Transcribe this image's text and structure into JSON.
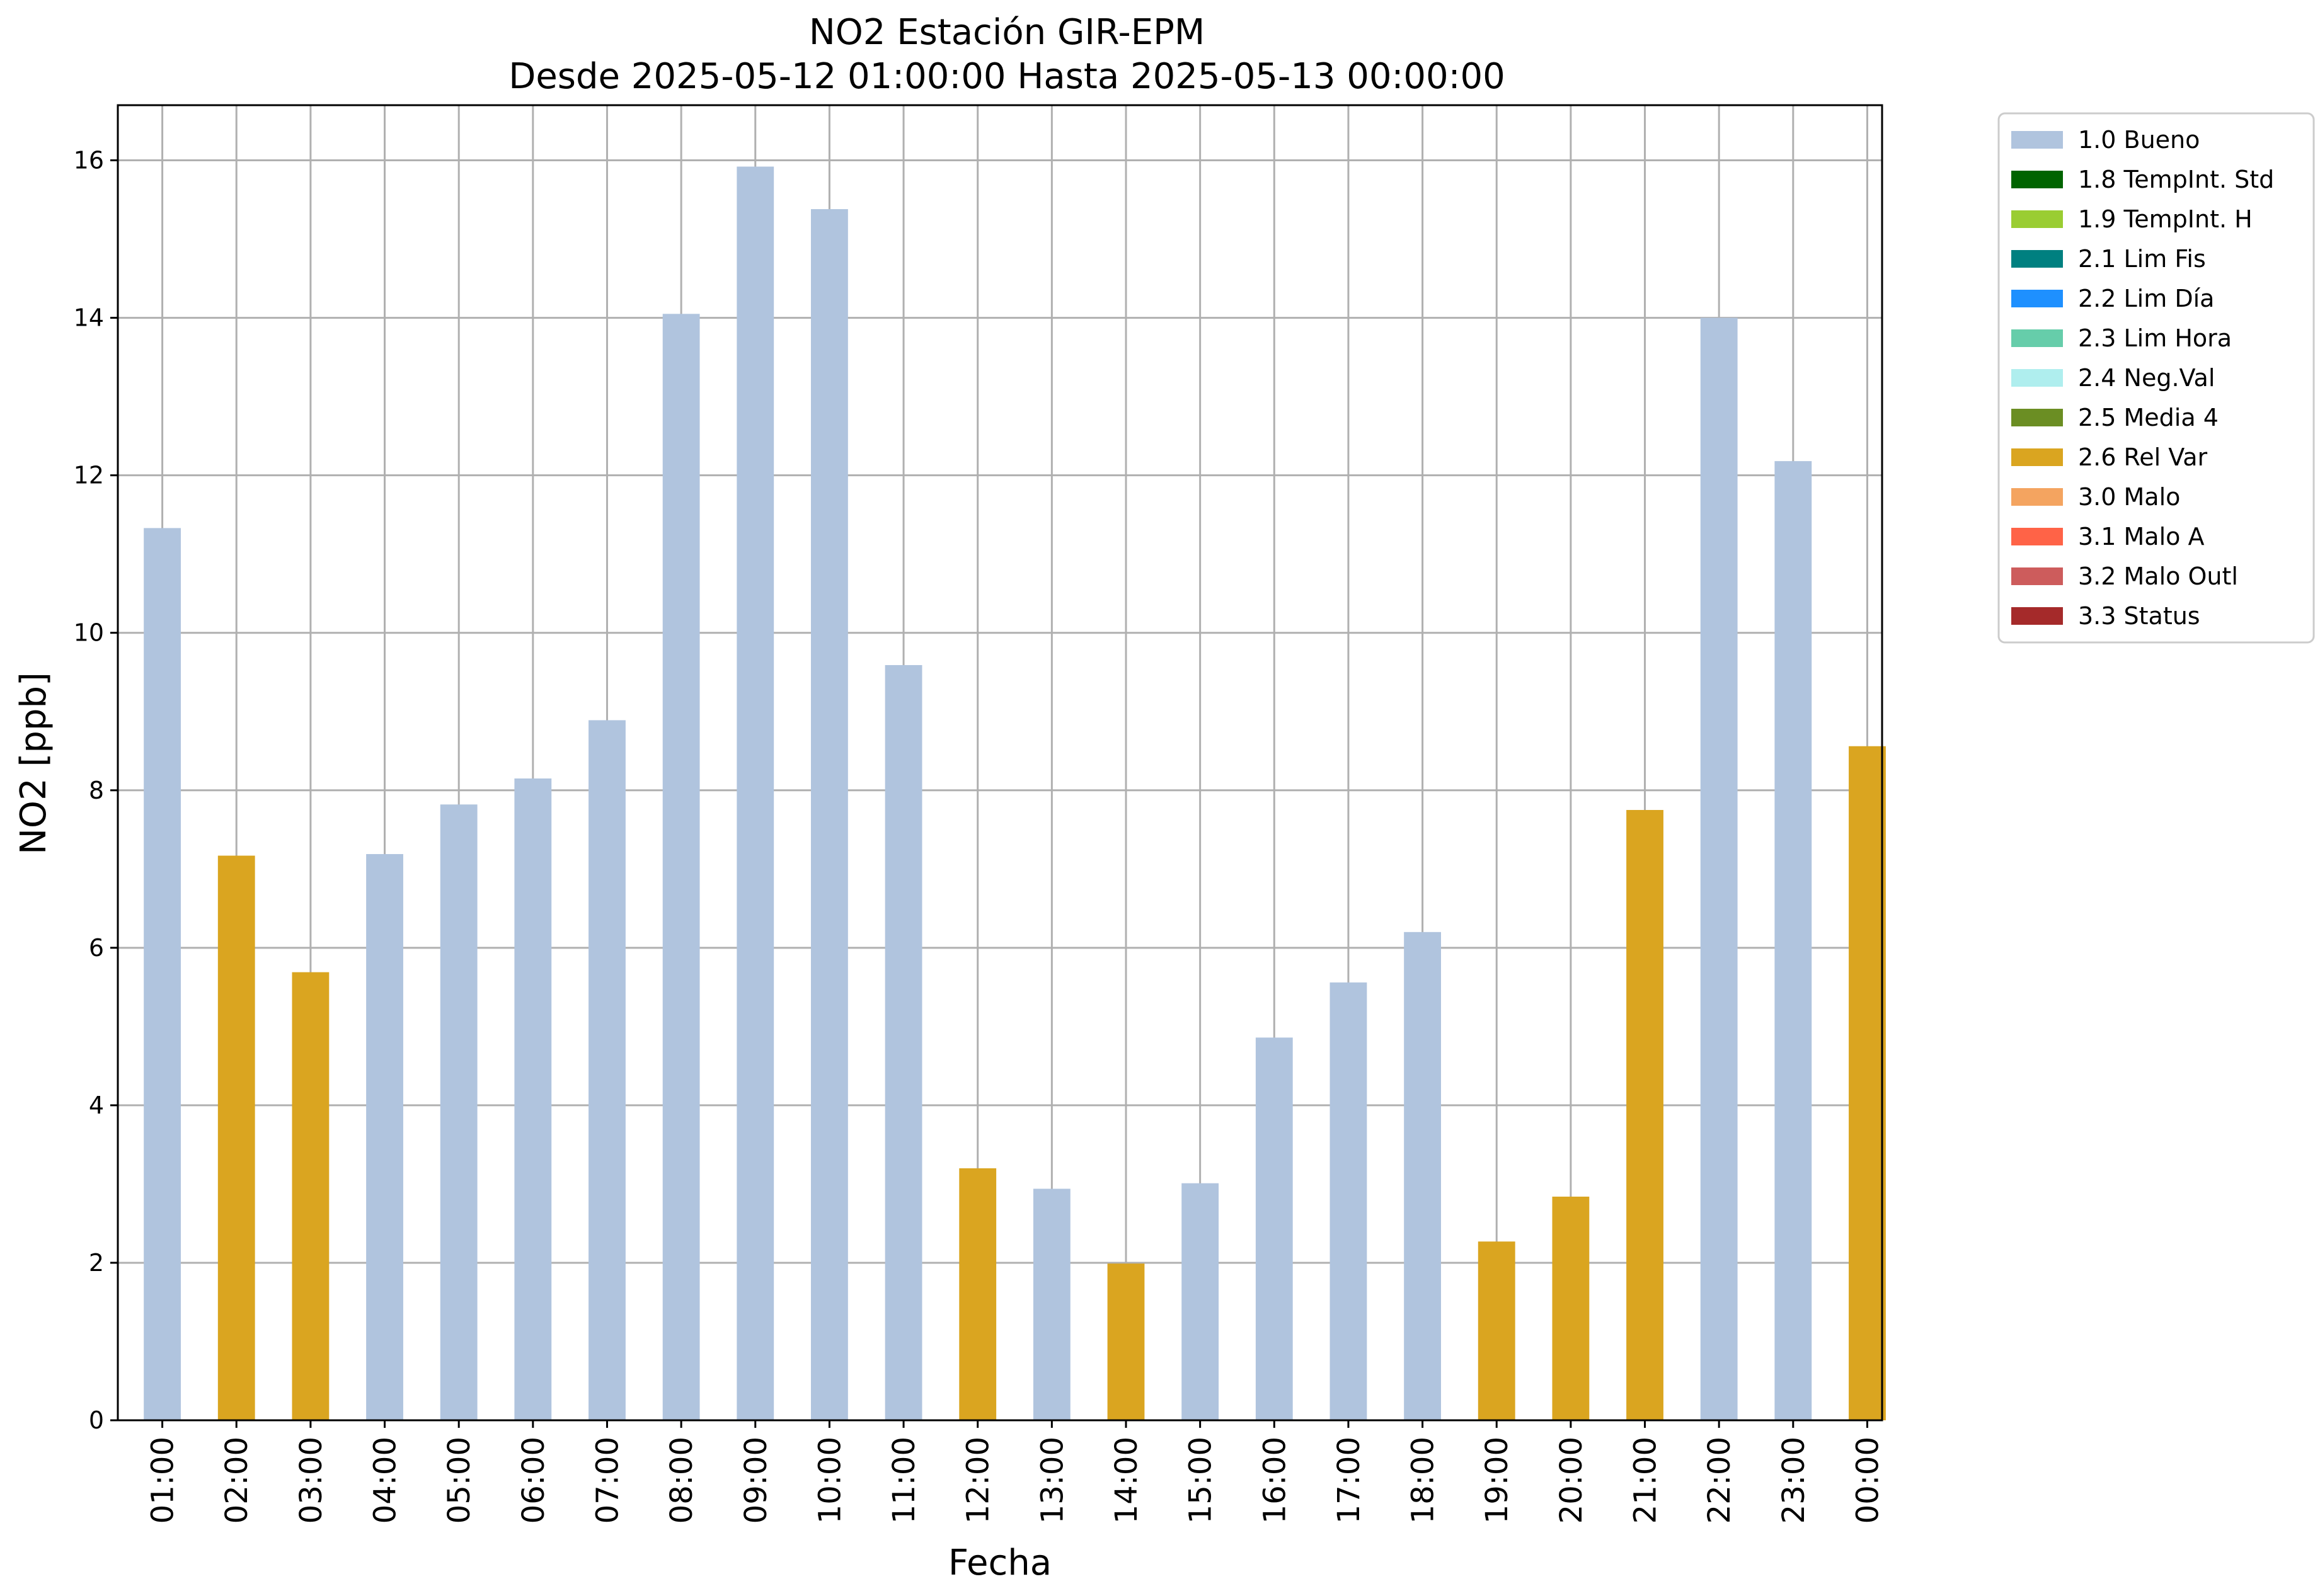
{
  "chart_data": {
    "type": "bar",
    "title": "NO2 Estación GIR-EPM",
    "subtitle": "Desde 2025-05-12 01:00:00 Hasta 2025-05-13 00:00:00",
    "xlabel": "Fecha",
    "ylabel": "NO2 [ppb]",
    "ylim": [
      0,
      16.7
    ],
    "yticks": [
      0,
      2,
      4,
      6,
      8,
      10,
      12,
      14,
      16
    ],
    "grid": true,
    "legend_position": "outside-top-right",
    "categories": [
      "01:00",
      "02:00",
      "03:00",
      "04:00",
      "05:00",
      "06:00",
      "07:00",
      "08:00",
      "09:00",
      "10:00",
      "11:00",
      "12:00",
      "13:00",
      "14:00",
      "15:00",
      "16:00",
      "17:00",
      "18:00",
      "19:00",
      "20:00",
      "21:00",
      "22:00",
      "23:00",
      "00:00"
    ],
    "values": [
      11.33,
      7.17,
      5.69,
      7.19,
      7.82,
      8.15,
      8.89,
      14.05,
      15.92,
      15.38,
      9.59,
      3.2,
      2.94,
      1.99,
      3.01,
      4.86,
      5.56,
      6.2,
      2.27,
      2.84,
      7.75,
      14.0,
      12.18,
      8.56
    ],
    "flags": [
      "1.0 Bueno",
      "2.6 Rel Var",
      "2.6 Rel Var",
      "1.0 Bueno",
      "1.0 Bueno",
      "1.0 Bueno",
      "1.0 Bueno",
      "1.0 Bueno",
      "1.0 Bueno",
      "1.0 Bueno",
      "1.0 Bueno",
      "2.6 Rel Var",
      "1.0 Bueno",
      "2.6 Rel Var",
      "1.0 Bueno",
      "1.0 Bueno",
      "1.0 Bueno",
      "1.0 Bueno",
      "2.6 Rel Var",
      "2.6 Rel Var",
      "2.6 Rel Var",
      "1.0 Bueno",
      "1.0 Bueno",
      "2.6 Rel Var"
    ],
    "legend": [
      {
        "label": "1.0 Bueno",
        "color": "#b0c4de"
      },
      {
        "label": "1.8 TempInt. Std",
        "color": "#006400"
      },
      {
        "label": "1.9 TempInt. H",
        "color": "#9acd32"
      },
      {
        "label": "2.1 Lim Fis",
        "color": "#008080"
      },
      {
        "label": "2.2 Lim Día",
        "color": "#1e90ff"
      },
      {
        "label": "2.3 Lim Hora",
        "color": "#66cdaa"
      },
      {
        "label": "2.4 Neg.Val",
        "color": "#afeeee"
      },
      {
        "label": "2.5 Media 4",
        "color": "#6b8e23"
      },
      {
        "label": "2.6 Rel Var",
        "color": "#daa520"
      },
      {
        "label": "3.0 Malo",
        "color": "#f4a460"
      },
      {
        "label": "3.1 Malo A",
        "color": "#ff6347"
      },
      {
        "label": "3.2 Malo Outl",
        "color": "#cd5c5c"
      },
      {
        "label": "3.3 Status",
        "color": "#a52a2a"
      }
    ]
  }
}
